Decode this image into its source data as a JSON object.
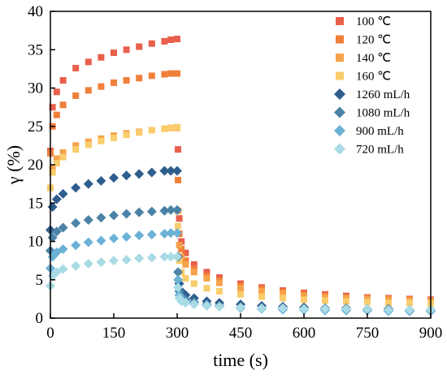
{
  "chart_data": {
    "type": "scatter",
    "xlabel": "time (s)",
    "ylabel": "γ (%)",
    "xlim": [
      0,
      900
    ],
    "ylim": [
      0,
      40
    ],
    "xticks": [
      "0",
      "150",
      "300",
      "450",
      "600",
      "750",
      "900"
    ],
    "yticks": [
      "0",
      "5",
      "10",
      "15",
      "20",
      "25",
      "30",
      "35",
      "40"
    ],
    "grid": false,
    "legend_position": "top-right",
    "series": [
      {
        "name": "100 ℃",
        "marker": "square",
        "color": "#e8604c",
        "x": [
          0,
          5,
          15,
          30,
          60,
          90,
          120,
          150,
          180,
          210,
          240,
          270,
          285,
          300,
          302,
          305,
          310,
          320,
          340,
          370,
          400,
          450,
          500,
          550,
          600,
          650,
          700,
          750,
          800,
          850,
          900
        ],
        "y": [
          21.8,
          27.5,
          29.5,
          31,
          32.6,
          33.4,
          34,
          34.6,
          35,
          35.4,
          35.8,
          36.1,
          36.3,
          36.4,
          22,
          13,
          10,
          8.5,
          7,
          6,
          5.3,
          4.5,
          4,
          3.6,
          3.3,
          3.1,
          2.9,
          2.7,
          2.6,
          2.5,
          2.4
        ]
      },
      {
        "name": "120 ℃",
        "marker": "square",
        "color": "#f07f3a",
        "x": [
          0,
          5,
          15,
          30,
          60,
          90,
          120,
          150,
          180,
          210,
          240,
          270,
          285,
          300,
          302,
          305,
          310,
          320,
          340,
          370,
          400,
          450,
          500,
          550,
          600,
          650,
          700,
          750,
          800,
          850,
          900
        ],
        "y": [
          21.5,
          25,
          26.5,
          27.8,
          29,
          29.7,
          30.2,
          30.7,
          31,
          31.3,
          31.6,
          31.8,
          31.9,
          31.9,
          18,
          11,
          9,
          7.5,
          6.4,
          5.5,
          4.9,
          4.2,
          3.8,
          3.4,
          3.1,
          2.9,
          2.7,
          2.6,
          2.5,
          2.4,
          2.3
        ]
      },
      {
        "name": "140 ℃",
        "marker": "square",
        "color": "#f6a24a",
        "x": [
          0,
          5,
          15,
          30,
          60,
          90,
          120,
          150,
          180,
          210,
          240,
          270,
          285,
          300,
          302,
          305,
          310,
          320,
          340,
          370,
          400,
          450,
          500,
          550,
          600,
          650,
          700,
          750,
          800,
          850,
          900
        ],
        "y": [
          17,
          19.5,
          20.8,
          21.6,
          22.5,
          23,
          23.4,
          23.8,
          24.1,
          24.3,
          24.5,
          24.7,
          24.8,
          24.8,
          14,
          9.5,
          8,
          7,
          6,
          5.2,
          4.6,
          3.9,
          3.5,
          3.2,
          2.9,
          2.7,
          2.6,
          2.5,
          2.4,
          2.3,
          2.2
        ]
      },
      {
        "name": "160 ℃",
        "marker": "square",
        "color": "#f9cc6c",
        "x": [
          0,
          5,
          15,
          30,
          60,
          90,
          120,
          150,
          180,
          210,
          240,
          270,
          285,
          300,
          302,
          305,
          310,
          320,
          340,
          370,
          400,
          450,
          500,
          550,
          600,
          650,
          700,
          750,
          800,
          850,
          900
        ],
        "y": [
          17,
          19,
          20.2,
          21,
          22,
          22.6,
          23.1,
          23.5,
          23.9,
          24.2,
          24.5,
          24.7,
          24.8,
          24.9,
          12,
          7.5,
          6,
          5.2,
          4.5,
          3.9,
          3.5,
          3.1,
          2.8,
          2.6,
          2.4,
          2.3,
          2.2,
          2.1,
          2,
          2,
          1.9
        ]
      },
      {
        "name": "1260 mL/h",
        "marker": "diamond",
        "color": "#2f5e8e",
        "x": [
          0,
          5,
          15,
          30,
          60,
          90,
          120,
          150,
          180,
          210,
          240,
          270,
          285,
          300,
          302,
          305,
          310,
          320,
          340,
          370,
          400,
          450,
          500,
          550,
          600,
          650,
          700,
          750,
          800,
          850,
          900
        ],
        "y": [
          11.5,
          14.5,
          15.5,
          16.2,
          17,
          17.5,
          17.9,
          18.3,
          18.6,
          18.8,
          19,
          19.2,
          19.2,
          19.2,
          8,
          4.5,
          3.5,
          3,
          2.6,
          2.2,
          2,
          1.8,
          1.6,
          1.5,
          1.4,
          1.3,
          1.3,
          1.2,
          1.2,
          1.1,
          1.1
        ]
      },
      {
        "name": "1080 mL/h",
        "marker": "diamond",
        "color": "#4a83a6",
        "x": [
          0,
          5,
          15,
          30,
          60,
          90,
          120,
          150,
          180,
          210,
          240,
          270,
          285,
          300,
          302,
          305,
          310,
          320,
          340,
          370,
          400,
          450,
          500,
          550,
          600,
          650,
          700,
          750,
          800,
          850,
          900
        ],
        "y": [
          8.8,
          10.5,
          11.3,
          11.8,
          12.4,
          12.8,
          13.1,
          13.4,
          13.6,
          13.8,
          13.9,
          14,
          14.1,
          14.1,
          6,
          3.5,
          2.8,
          2.4,
          2.1,
          1.8,
          1.6,
          1.4,
          1.3,
          1.2,
          1.1,
          1.1,
          1,
          1,
          1,
          0.9,
          0.9
        ]
      },
      {
        "name": "900 mL/h",
        "marker": "diamond",
        "color": "#6cb2d6",
        "x": [
          0,
          5,
          15,
          30,
          60,
          90,
          120,
          150,
          180,
          210,
          240,
          270,
          285,
          300,
          302,
          305,
          310,
          320,
          340,
          370,
          400,
          450,
          500,
          550,
          600,
          650,
          700,
          750,
          800,
          850,
          900
        ],
        "y": [
          6.5,
          8,
          8.6,
          9,
          9.5,
          9.9,
          10.1,
          10.4,
          10.6,
          10.8,
          10.9,
          11,
          11.1,
          11.1,
          5,
          3,
          2.5,
          2.1,
          1.9,
          1.7,
          1.5,
          1.3,
          1.2,
          1.1,
          1.1,
          1,
          1,
          1,
          0.9,
          0.9,
          0.9
        ]
      },
      {
        "name": "720 mL/h",
        "marker": "diamond",
        "color": "#a9dbe4",
        "x": [
          0,
          5,
          15,
          30,
          60,
          90,
          120,
          150,
          180,
          210,
          240,
          270,
          285,
          300,
          302,
          305,
          310,
          320,
          340,
          370,
          400,
          450,
          500,
          550,
          600,
          650,
          700,
          750,
          800,
          850,
          900
        ],
        "y": [
          4.2,
          5.5,
          6,
          6.4,
          6.8,
          7.1,
          7.3,
          7.5,
          7.6,
          7.8,
          7.9,
          8,
          8,
          8,
          4,
          2.6,
          2.2,
          2,
          1.8,
          1.6,
          1.5,
          1.4,
          1.3,
          1.3,
          1.2,
          1.2,
          1.2,
          1.2,
          1.1,
          1.1,
          1.1
        ]
      }
    ]
  }
}
